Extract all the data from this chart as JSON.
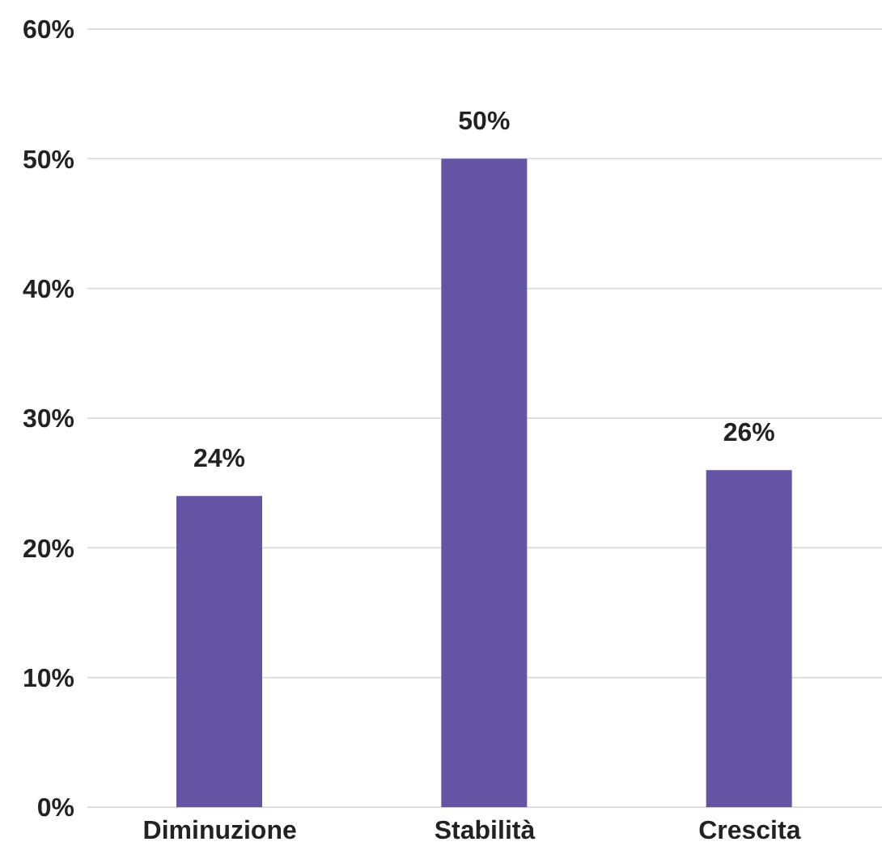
{
  "chart_data": {
    "type": "bar",
    "categories": [
      "Diminuzione",
      "Stabilità",
      "Crescita"
    ],
    "values": [
      24,
      50,
      26
    ],
    "value_labels": [
      "24%",
      "50%",
      "26%"
    ],
    "color": "#6554a3",
    "ylim": [
      0,
      60
    ],
    "yticks": [
      {
        "value": 0,
        "label": "0%"
      },
      {
        "value": 10,
        "label": "10%"
      },
      {
        "value": 20,
        "label": "20%"
      },
      {
        "value": 30,
        "label": "30%"
      },
      {
        "value": 40,
        "label": "40%"
      },
      {
        "value": 50,
        "label": "50%"
      },
      {
        "value": 60,
        "label": "60%"
      }
    ],
    "grid": "y"
  }
}
